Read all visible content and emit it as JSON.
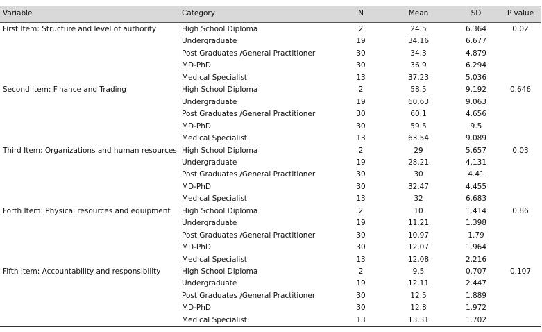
{
  "table": {
    "header": [
      "Variable",
      "Category",
      "N",
      "Mean",
      "SD",
      "P value"
    ],
    "groups": [
      {
        "variable": "First Item: Structure and level of authority",
        "p_value": 0.02,
        "rows": [
          [
            "High School Diploma",
            2,
            24.5,
            6.364
          ],
          [
            "Undergraduate",
            19,
            34.16,
            6.677
          ],
          [
            "Post Graduates /General Practitioner",
            30,
            34.3,
            4.879
          ],
          [
            "MD-PhD",
            30,
            36.9,
            6.294
          ],
          [
            "Medical Specialist",
            13,
            37.23,
            5.036
          ]
        ]
      },
      {
        "variable": "Second Item: Finance and Trading",
        "p_value": 0.646,
        "rows": [
          [
            "High School Diploma",
            2,
            58.5,
            9.192
          ],
          [
            "Undergraduate",
            19,
            60.63,
            9.063
          ],
          [
            "Post Graduates /General Practitioner",
            30,
            60.1,
            4.656
          ],
          [
            "MD-PhD",
            30,
            59.5,
            9.5
          ],
          [
            "Medical Specialist",
            13,
            63.54,
            9.089
          ]
        ]
      },
      {
        "variable": "Third Item: Organizations and human resources",
        "p_value": 0.03,
        "rows": [
          [
            "High School Diploma",
            2,
            29,
            5.657
          ],
          [
            "Undergraduate",
            19,
            28.21,
            4.131
          ],
          [
            "Post Graduates /General Practitioner",
            30,
            30,
            4.41
          ],
          [
            "MD-PhD",
            30,
            32.47,
            4.455
          ],
          [
            "Medical Specialist",
            13,
            32,
            6.683
          ]
        ]
      },
      {
        "variable": "Forth Item: Physical resources and equipment",
        "p_value": 0.86,
        "rows": [
          [
            "High School Diploma",
            2,
            10,
            1.414
          ],
          [
            "Undergraduate",
            19,
            11.21,
            1.398
          ],
          [
            "Post Graduates /General Practitioner",
            30,
            10.97,
            1.79
          ],
          [
            "MD-PhD",
            30,
            12.07,
            1.964
          ],
          [
            "Medical Specialist",
            13,
            12.08,
            2.216
          ]
        ]
      },
      {
        "variable": "Fifth Item: Accountability and responsibility",
        "p_value": 0.107,
        "rows": [
          [
            "High School Diploma",
            2,
            9.5,
            0.707
          ],
          [
            "Undergraduate",
            19,
            12.11,
            2.447
          ],
          [
            "Post Graduates /General Practitioner",
            30,
            12.5,
            1.889
          ],
          [
            "MD-PhD",
            30,
            12.8,
            1.972
          ],
          [
            "Medical Specialist",
            13,
            13.31,
            1.702
          ]
        ]
      }
    ]
  }
}
